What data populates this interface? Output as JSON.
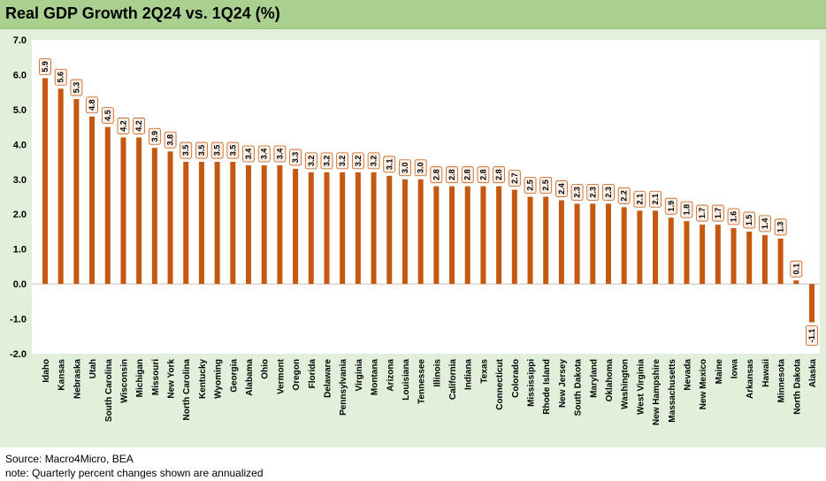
{
  "header": {
    "title": "Real GDP Growth 2Q24 vs. 1Q24 (%)"
  },
  "footer": {
    "source": "Source: Macro4Micro, BEA",
    "note": "note: Quarterly percent changes shown are annualized"
  },
  "colors": {
    "bar": "#c65911",
    "title_bg": "#a9d08e",
    "panel_bg": "#e2efda",
    "label_box_bg": "#fdf0e6"
  },
  "chart_data": {
    "type": "bar",
    "title": "Real GDP Growth 2Q24 vs. 1Q24 (%)",
    "xlabel": "",
    "ylabel": "",
    "ylim": [
      -2.0,
      7.0
    ],
    "yticks": [
      "-2.0",
      "-1.0",
      "0.0",
      "1.0",
      "2.0",
      "3.0",
      "4.0",
      "5.0",
      "6.0",
      "7.0"
    ],
    "grid": false,
    "legend": "none",
    "categories": [
      "Idaho",
      "Kansas",
      "Nebraska",
      "Utah",
      "South Carolina",
      "Wisconsin",
      "Michigan",
      "Missouri",
      "New York",
      "North Carolina",
      "Kentucky",
      "Wyoming",
      "Georgia",
      "Alabama",
      "Ohio",
      "Vermont",
      "Oregon",
      "Florida",
      "Delaware",
      "Pennsylvania",
      "Virginia",
      "Montana",
      "Arizona",
      "Louisiana",
      "Tennessee",
      "Illinois",
      "California",
      "Indiana",
      "Texas",
      "Connecticut",
      "Colorado",
      "Mississippi",
      "Rhode Island",
      "New Jersey",
      "South Dakota",
      "Maryland",
      "Oklahoma",
      "Washington",
      "West Virginia",
      "New Hampshire",
      "Massachusetts",
      "Nevada",
      "New Mexico",
      "Maine",
      "Iowa",
      "Arkansas",
      "Hawaii",
      "Minnesota",
      "North Dakota",
      "Alaska"
    ],
    "values": [
      5.9,
      5.6,
      5.3,
      4.8,
      4.5,
      4.2,
      4.2,
      3.9,
      3.8,
      3.5,
      3.5,
      3.5,
      3.5,
      3.4,
      3.4,
      3.4,
      3.3,
      3.2,
      3.2,
      3.2,
      3.2,
      3.2,
      3.1,
      3.0,
      3.0,
      2.8,
      2.8,
      2.8,
      2.8,
      2.8,
      2.7,
      2.5,
      2.5,
      2.4,
      2.3,
      2.3,
      2.3,
      2.2,
      2.1,
      2.1,
      1.9,
      1.8,
      1.7,
      1.7,
      1.6,
      1.5,
      1.4,
      1.3,
      0.1,
      -1.1
    ],
    "data_labels": [
      "5.9",
      "5.6",
      "5.3",
      "4.8",
      "4.5",
      "4.2",
      "4.2",
      "3.9",
      "3.8",
      "3.5",
      "3.5",
      "3.5",
      "3.5",
      "3.4",
      "3.4",
      "3.4",
      "3.3",
      "3.2",
      "3.2",
      "3.2",
      "3.2",
      "3.2",
      "3.1",
      "3.0",
      "3.0",
      "2.8",
      "2.8",
      "2.8",
      "2.8",
      "2.8",
      "2.7",
      "2.5",
      "2.5",
      "2.4",
      "2.3",
      "2.3",
      "2.3",
      "2.2",
      "2.1",
      "2.1",
      "1.9",
      "1.8",
      "1.7",
      "1.7",
      "1.6",
      "1.5",
      "1.4",
      "1.3",
      "0.1",
      "-1.1"
    ]
  }
}
